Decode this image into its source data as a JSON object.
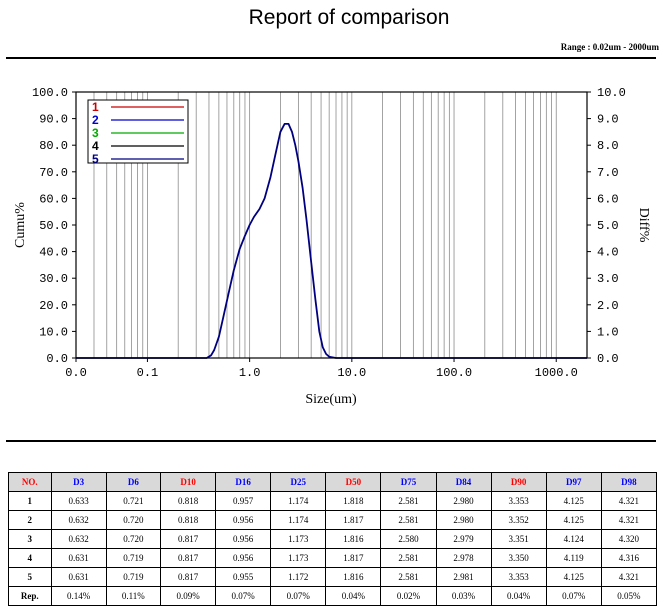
{
  "header": {
    "title": "Report of comparison",
    "range": "Range : 0.02um - 2000um"
  },
  "chart_data": {
    "type": "line",
    "xscale": "log",
    "xlim": [
      0.02,
      2000
    ],
    "xticks": [
      "0.0",
      "0.1",
      "1.0",
      "10.0",
      "100.0",
      "1000.0"
    ],
    "xlabel": "Size(um)",
    "ylabel_left": "Cumu%",
    "ylabel_right": "Diff%",
    "ylim_left": [
      0,
      100
    ],
    "ylim_right": [
      0,
      10
    ],
    "yticks_left": [
      "0.0",
      "10.0",
      "20.0",
      "30.0",
      "40.0",
      "50.0",
      "60.0",
      "70.0",
      "80.0",
      "90.0",
      "100.0"
    ],
    "yticks_right": [
      "0.0",
      "1.0",
      "2.0",
      "3.0",
      "4.0",
      "5.0",
      "6.0",
      "7.0",
      "8.0",
      "9.0",
      "10.0"
    ],
    "grid": true,
    "legend_position": "top-left",
    "series": [
      {
        "name": "1",
        "color": "#cc0000",
        "x": [],
        "y": []
      },
      {
        "name": "2",
        "color": "#0000cc",
        "x": [],
        "y": []
      },
      {
        "name": "3",
        "color": "#00aa00",
        "x": [],
        "y": []
      },
      {
        "name": "4",
        "color": "#000000",
        "x": [],
        "y": []
      },
      {
        "name": "5",
        "color": "#000080",
        "x": [
          0.02,
          0.3,
          0.38,
          0.42,
          0.45,
          0.5,
          0.55,
          0.62,
          0.7,
          0.8,
          0.9,
          1.0,
          1.1,
          1.25,
          1.4,
          1.6,
          1.8,
          2.0,
          2.2,
          2.4,
          2.6,
          2.8,
          3.0,
          3.3,
          3.6,
          4.0,
          4.4,
          4.8,
          5.2,
          5.6,
          6.0,
          7.0,
          2000
        ],
        "y": [
          0,
          0,
          0,
          0.1,
          0.3,
          0.8,
          1.5,
          2.4,
          3.3,
          4.1,
          4.6,
          5.0,
          5.3,
          5.6,
          6.0,
          6.8,
          7.7,
          8.5,
          8.8,
          8.8,
          8.5,
          8.0,
          7.4,
          6.4,
          5.2,
          3.6,
          2.2,
          1.0,
          0.4,
          0.15,
          0.05,
          0,
          0
        ]
      }
    ]
  },
  "table": {
    "headers": [
      {
        "label": "NO.",
        "color": "#ff0000"
      },
      {
        "label": "D3",
        "color": "#0000ff"
      },
      {
        "label": "D6",
        "color": "#0000ff"
      },
      {
        "label": "D10",
        "color": "#ff0000"
      },
      {
        "label": "D16",
        "color": "#0000ff"
      },
      {
        "label": "D25",
        "color": "#0000ff"
      },
      {
        "label": "D50",
        "color": "#ff0000"
      },
      {
        "label": "D75",
        "color": "#0000ff"
      },
      {
        "label": "D84",
        "color": "#0000ff"
      },
      {
        "label": "D90",
        "color": "#ff0000"
      },
      {
        "label": "D97",
        "color": "#0000ff"
      },
      {
        "label": "D98",
        "color": "#0000ff"
      }
    ],
    "rows": [
      [
        "1",
        "0.633",
        "0.721",
        "0.818",
        "0.957",
        "1.174",
        "1.818",
        "2.581",
        "2.980",
        "3.353",
        "4.125",
        "4.321"
      ],
      [
        "2",
        "0.632",
        "0.720",
        "0.818",
        "0.956",
        "1.174",
        "1.817",
        "2.581",
        "2.980",
        "3.352",
        "4.125",
        "4.321"
      ],
      [
        "3",
        "0.632",
        "0.720",
        "0.817",
        "0.956",
        "1.173",
        "1.816",
        "2.580",
        "2.979",
        "3.351",
        "4.124",
        "4.320"
      ],
      [
        "4",
        "0.631",
        "0.719",
        "0.817",
        "0.956",
        "1.173",
        "1.817",
        "2.581",
        "2.978",
        "3.350",
        "4.119",
        "4.316"
      ],
      [
        "5",
        "0.631",
        "0.719",
        "0.817",
        "0.955",
        "1.172",
        "1.816",
        "2.581",
        "2.981",
        "3.353",
        "4.125",
        "4.321"
      ],
      [
        "Rep.",
        "0.14%",
        "0.11%",
        "0.09%",
        "0.07%",
        "0.07%",
        "0.04%",
        "0.02%",
        "0.03%",
        "0.04%",
        "0.07%",
        "0.05%"
      ]
    ]
  }
}
